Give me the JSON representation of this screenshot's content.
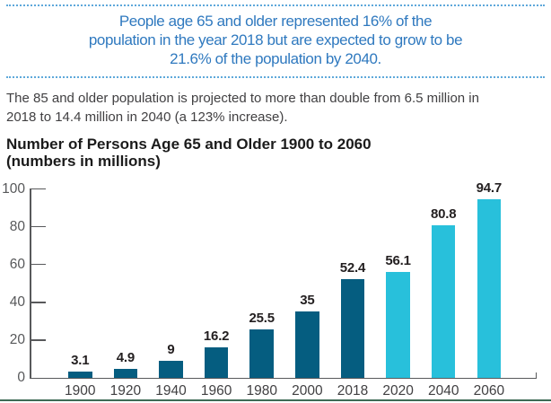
{
  "callout": {
    "lines": [
      "People age 65 and older represented 16% of the",
      "population in the year 2018 but are expected to grow to be",
      "21.6% of the population by 2040."
    ],
    "text_color": "#2f79bf",
    "dotted_border_color": "#5ea8da"
  },
  "intro": {
    "lines": [
      "The 85 and older population is projected to more than double from 6.5 million in",
      "2018 to 14.4 million in 2040 (a 123% increase)."
    ]
  },
  "chart_title": {
    "lines": [
      "Number of Persons Age 65 and Older 1900 to 2060",
      "(numbers in millions)"
    ]
  },
  "chart_data": {
    "type": "bar",
    "title": "Number of Persons Age 65 and Older 1900 to 2060 (numbers in millions)",
    "xlabel": "",
    "ylabel": "",
    "categories": [
      "1900",
      "1920",
      "1940",
      "1960",
      "1980",
      "2000",
      "2018",
      "2020",
      "2040",
      "2060"
    ],
    "values": [
      3.1,
      4.9,
      9,
      16.2,
      25.5,
      35,
      52.4,
      56.1,
      80.8,
      94.7
    ],
    "bar_labels": [
      "3.1",
      "4.9",
      "9",
      "16.2",
      "25.5",
      "35",
      "52.4",
      "56.1",
      "80.8",
      "94.7"
    ],
    "bar_styles": [
      "historical",
      "historical",
      "historical",
      "historical",
      "historical",
      "historical",
      "historical",
      "projected",
      "projected",
      "projected"
    ],
    "colors": {
      "historical": "#055d80",
      "projected": "#28c0db"
    },
    "ylim": [
      0,
      100
    ],
    "yticks": [
      0,
      20,
      40,
      60,
      80,
      100
    ],
    "grid": false,
    "legend": "none",
    "value_labels": "above bars"
  },
  "page": {
    "bottom_rule_color": "#3e6b55",
    "axis_color": "#58595b"
  }
}
